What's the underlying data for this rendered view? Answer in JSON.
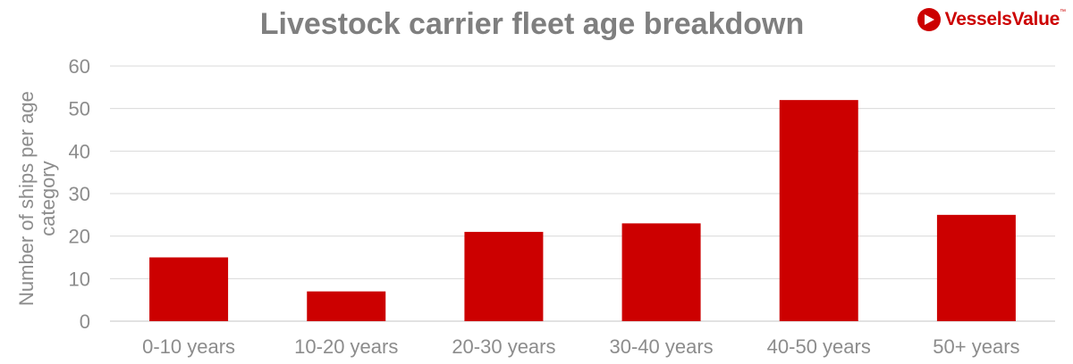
{
  "chart_data": {
    "type": "bar",
    "title": "Livestock carrier fleet age breakdown",
    "xlabel": "",
    "ylabel": "Number of ships per age category",
    "categories": [
      "0-10 years",
      "10-20 years",
      "20-30 years",
      "30-40 years",
      "40-50 years",
      "50+ years"
    ],
    "values": [
      15,
      7,
      21,
      23,
      52,
      25
    ],
    "ylim": [
      0,
      60
    ],
    "yticks": [
      "0",
      "10",
      "20",
      "30",
      "40",
      "50",
      "60"
    ],
    "grid": true,
    "legend": "none",
    "bar_color": "#cc0000",
    "grid_color": "#d9d9d9",
    "text_color": "#8c8c8c"
  },
  "brand": {
    "name": "VesselsValue",
    "trademark": "™",
    "logo_icon": "triangle-play-logo-icon",
    "color": "#cc0000"
  }
}
